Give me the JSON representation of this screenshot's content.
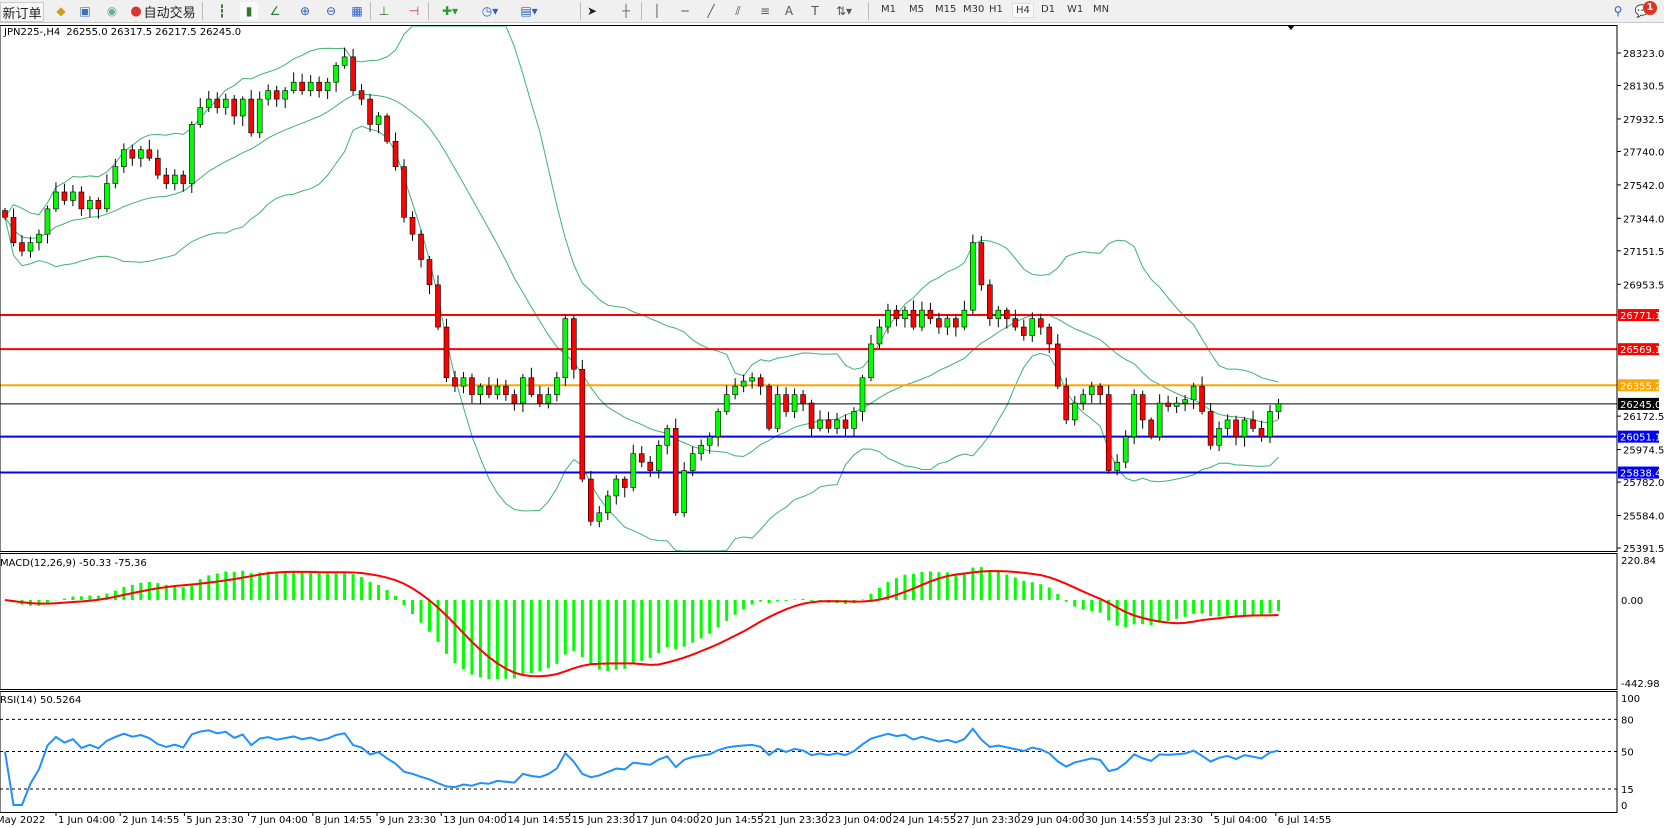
{
  "toolbar": {
    "new_order": "新订单",
    "auto_trade": "自动交易",
    "timeframes": [
      "M1",
      "M5",
      "M15",
      "M30",
      "H1",
      "H4",
      "D1",
      "W1",
      "MN"
    ],
    "active_timeframe": "H4",
    "notification_count": "1",
    "icons": [
      "new-order-icon",
      "market-watch-icon",
      "navigator-icon",
      "signals-icon",
      "auto-trade-icon",
      "bar-chart-icon",
      "candlestick-icon",
      "line-chart-icon",
      "zoom-in-icon",
      "zoom-out-icon",
      "tile-windows-icon",
      "auto-scroll-icon",
      "chart-shift-icon",
      "new-chart-icon",
      "periods-icon",
      "templates-icon",
      "cursor-icon",
      "crosshair-icon",
      "vertical-line-icon",
      "horizontal-line-icon",
      "trendline-icon",
      "equidistant-channel-icon",
      "fibonacci-icon",
      "text-icon",
      "text-label-icon",
      "arrows-icon",
      "search-icon",
      "notification-icon"
    ]
  },
  "chart": {
    "symbol": "JPN225-,H4",
    "ohlc": "26255.0 26317.5 26217.5 26245.0",
    "current_price": "26245.0",
    "price_ticks": [
      "28323.0",
      "28130.5",
      "27932.5",
      "27740.0",
      "27542.0",
      "27344.0",
      "27151.5",
      "26953.5",
      "26172.5",
      "25974.5",
      "25782.0",
      "25584.0",
      "25391.5"
    ],
    "levels": [
      {
        "price": "26771.1",
        "color": "#ff0000"
      },
      {
        "price": "26569.1",
        "color": "#ff0000"
      },
      {
        "price": "26355.2",
        "color": "#ffa500"
      },
      {
        "price": "26051.1",
        "color": "#0000ff"
      },
      {
        "price": "25838.4",
        "color": "#0000ff"
      }
    ],
    "time_labels": [
      "May 2022",
      "1 Jun 04:00",
      "2 Jun 14:55",
      "5 Jun 23:30",
      "7 Jun 04:00",
      "8 Jun 14:55",
      "9 Jun 23:30",
      "13 Jun 04:00",
      "14 Jun 14:55",
      "15 Jun 23:30",
      "17 Jun 04:00",
      "20 Jun 14:55",
      "21 Jun 23:30",
      "23 Jun 04:00",
      "24 Jun 14:55",
      "27 Jun 23:30",
      "29 Jun 04:00",
      "30 Jun 14:55",
      "3 Jul 23:30",
      "5 Jul 04:00",
      "6 Jul 14:55"
    ],
    "colors": {
      "bull": "#00ff00",
      "bear": "#ff0000",
      "bands": "#3cb371",
      "macd_hist": "#00ff00",
      "macd_signal": "#ff0000",
      "rsi": "#1e90ff"
    },
    "closes": [
      27350,
      27200,
      27150,
      27200,
      27250,
      27400,
      27500,
      27450,
      27500,
      27400,
      27450,
      27400,
      27550,
      27650,
      27750,
      27700,
      27750,
      27700,
      27600,
      27550,
      27600,
      27550,
      27900,
      28000,
      28050,
      28000,
      28050,
      27950,
      28050,
      27850,
      28050,
      28100,
      28050,
      28100,
      28150,
      28100,
      28150,
      28100,
      28150,
      28250,
      28300,
      28100,
      28050,
      27900,
      27950,
      27800,
      27650,
      27350,
      27250,
      27100,
      26950,
      26700,
      26400,
      26350,
      26400,
      26300,
      26350,
      26300,
      26350,
      26300,
      26250,
      26400,
      26300,
      26250,
      26300,
      26400,
      26750,
      26450,
      25800,
      25550,
      25600,
      25700,
      25800,
      25750,
      25950,
      25900,
      25850,
      26000,
      26100,
      25600,
      25850,
      25950,
      26000,
      26050,
      26200,
      26300,
      26350,
      26380,
      26400,
      26350,
      26100,
      26300,
      26200,
      26300,
      26250,
      26100,
      26150,
      26100,
      26150,
      26100,
      26200,
      26400,
      26600,
      26700,
      26800,
      26750,
      26800,
      26700,
      26800,
      26750,
      26700,
      26750,
      26700,
      26800,
      27200,
      26950,
      26750,
      26800,
      26750,
      26700,
      26650,
      26750,
      26700,
      26600,
      26350,
      26150,
      26250,
      26300,
      26350,
      26300,
      25850,
      25900,
      26050,
      26300,
      26150,
      26050,
      26250,
      26230,
      26250,
      26270,
      26350,
      26200,
      26000,
      26100,
      26150,
      26050,
      26150,
      26100,
      26050,
      26200,
      26245
    ]
  },
  "macd": {
    "label": "MACD(12,26,9) -50.33 -75.36",
    "ticks": [
      "220.84",
      "0.00",
      "-442.98"
    ]
  },
  "rsi": {
    "label": "RSI(14) 50.5264",
    "ticks": [
      "100",
      "80",
      "50",
      "15",
      "0"
    ]
  }
}
